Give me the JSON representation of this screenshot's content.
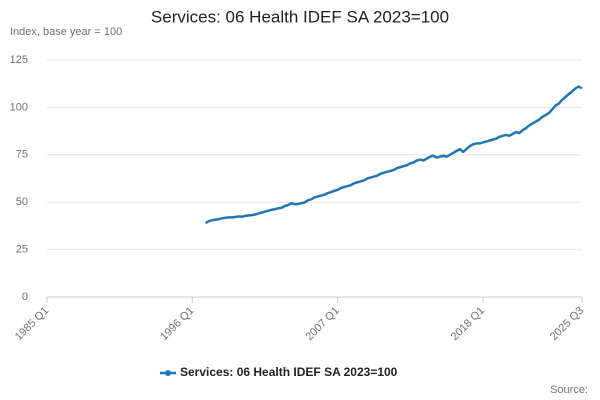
{
  "chart_data": {
    "type": "line",
    "title": "Services: 06 Health IDEF SA 2023=100",
    "y_label": "Index, base year = 100",
    "source": "Source:",
    "categories": [
      "1985 Q1",
      null,
      null,
      null,
      null,
      null,
      null,
      null,
      null,
      null,
      null,
      null,
      null,
      null,
      null,
      null,
      null,
      null,
      null,
      null,
      null,
      null,
      null,
      null,
      null,
      null,
      null,
      null,
      null,
      null,
      null,
      null,
      null,
      null,
      null,
      null,
      null,
      null,
      null,
      null,
      null,
      null,
      null,
      null,
      "1996 Q1",
      null,
      null,
      null,
      null,
      null,
      null,
      null,
      null,
      null,
      null,
      null,
      null,
      null,
      null,
      null,
      null,
      null,
      null,
      null,
      null,
      null,
      null,
      null,
      null,
      null,
      null,
      null,
      null,
      null,
      null,
      null,
      null,
      null,
      null,
      null,
      null,
      null,
      null,
      null,
      null,
      null,
      null,
      null,
      "2007 Q1",
      null,
      null,
      null,
      null,
      null,
      null,
      null,
      null,
      null,
      null,
      null,
      null,
      null,
      null,
      null,
      null,
      null,
      null,
      null,
      null,
      null,
      null,
      null,
      null,
      null,
      null,
      null,
      null,
      null,
      null,
      null,
      null,
      null,
      null,
      null,
      null,
      null,
      null,
      null,
      null,
      null,
      null,
      null,
      "2018 Q1",
      null,
      null,
      null,
      null,
      null,
      null,
      null,
      null,
      null,
      null,
      null,
      null,
      null,
      null,
      null,
      null,
      null,
      null,
      null,
      null,
      null,
      null,
      null,
      null,
      null,
      null,
      null,
      null,
      null,
      "2025 Q3"
    ],
    "series": [
      {
        "name": "Services: 06 Health IDEF SA 2023=100",
        "color": "#1f78b4",
        "values": [
          null,
          null,
          null,
          null,
          null,
          null,
          null,
          null,
          null,
          null,
          null,
          null,
          null,
          null,
          null,
          null,
          null,
          null,
          null,
          null,
          null,
          null,
          null,
          null,
          null,
          null,
          null,
          null,
          null,
          null,
          null,
          null,
          null,
          null,
          null,
          null,
          null,
          null,
          null,
          null,
          null,
          null,
          null,
          null,
          null,
          null,
          null,
          null,
          39,
          40,
          40.5,
          40.8,
          41,
          41.5,
          41.8,
          42,
          42,
          42.2,
          42.5,
          42.3,
          42.8,
          43,
          43.2,
          43.5,
          44,
          44.5,
          45,
          45.5,
          46,
          46.3,
          46.8,
          47,
          48,
          48.5,
          49.5,
          49,
          49,
          49.5,
          49.8,
          51,
          51.5,
          52.5,
          53,
          53.5,
          54,
          54.8,
          55.3,
          56,
          56.5,
          57.5,
          58,
          58.5,
          59,
          60,
          60.5,
          61,
          61.5,
          62.5,
          63,
          63.5,
          64,
          65,
          65.5,
          66,
          66.5,
          67,
          68,
          68.5,
          69,
          69.5,
          70.5,
          71,
          72,
          72.5,
          72,
          73,
          74,
          74.5,
          73.5,
          74,
          74.5,
          74,
          75,
          76,
          77,
          78,
          76.5,
          78,
          79.5,
          80.5,
          81,
          81,
          81.5,
          82,
          82.5,
          83,
          83.5,
          84.5,
          85,
          85.5,
          85,
          86,
          87,
          86.5,
          88,
          89,
          90.5,
          91.5,
          92.5,
          93.5,
          95,
          96,
          97,
          99,
          101,
          102,
          104,
          105.5,
          107,
          108.5,
          110,
          111,
          110
        ]
      }
    ],
    "ylim": [
      0,
      125
    ],
    "yticks": [
      0,
      25,
      50,
      75,
      100,
      125
    ],
    "grid": true
  }
}
